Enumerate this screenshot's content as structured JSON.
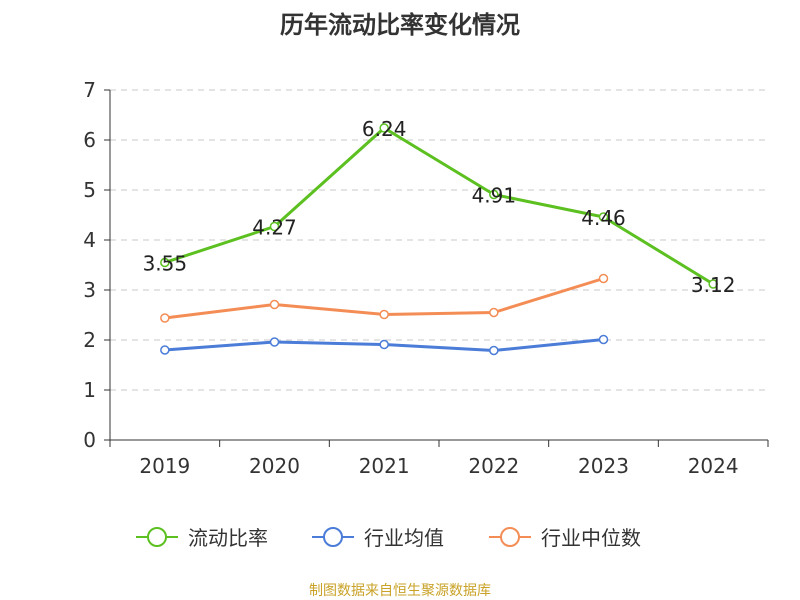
{
  "chart_data": {
    "type": "line",
    "title": "历年流动比率变化情况",
    "categories": [
      "2019",
      "2020",
      "2021",
      "2022",
      "2023",
      "2024"
    ],
    "ylim": [
      0,
      7
    ],
    "yticks": [
      0,
      1,
      2,
      3,
      4,
      5,
      6,
      7
    ],
    "grid": true,
    "legend_position": "bottom",
    "series": [
      {
        "name": "流动比率",
        "color": "#5cc021",
        "values": [
          3.55,
          4.27,
          6.24,
          4.91,
          4.46,
          3.12
        ],
        "labels": [
          "3.55",
          "4.27",
          "6.24",
          "4.91",
          "4.46",
          "3.12"
        ]
      },
      {
        "name": "行业均值",
        "color": "#4a7cd8",
        "values": [
          1.8,
          1.96,
          1.91,
          1.79,
          2.01,
          null
        ]
      },
      {
        "name": "行业中位数",
        "color": "#f48d55",
        "values": [
          2.44,
          2.71,
          2.51,
          2.55,
          3.23,
          null
        ]
      }
    ],
    "source": "制图数据来自恒生聚源数据库"
  }
}
